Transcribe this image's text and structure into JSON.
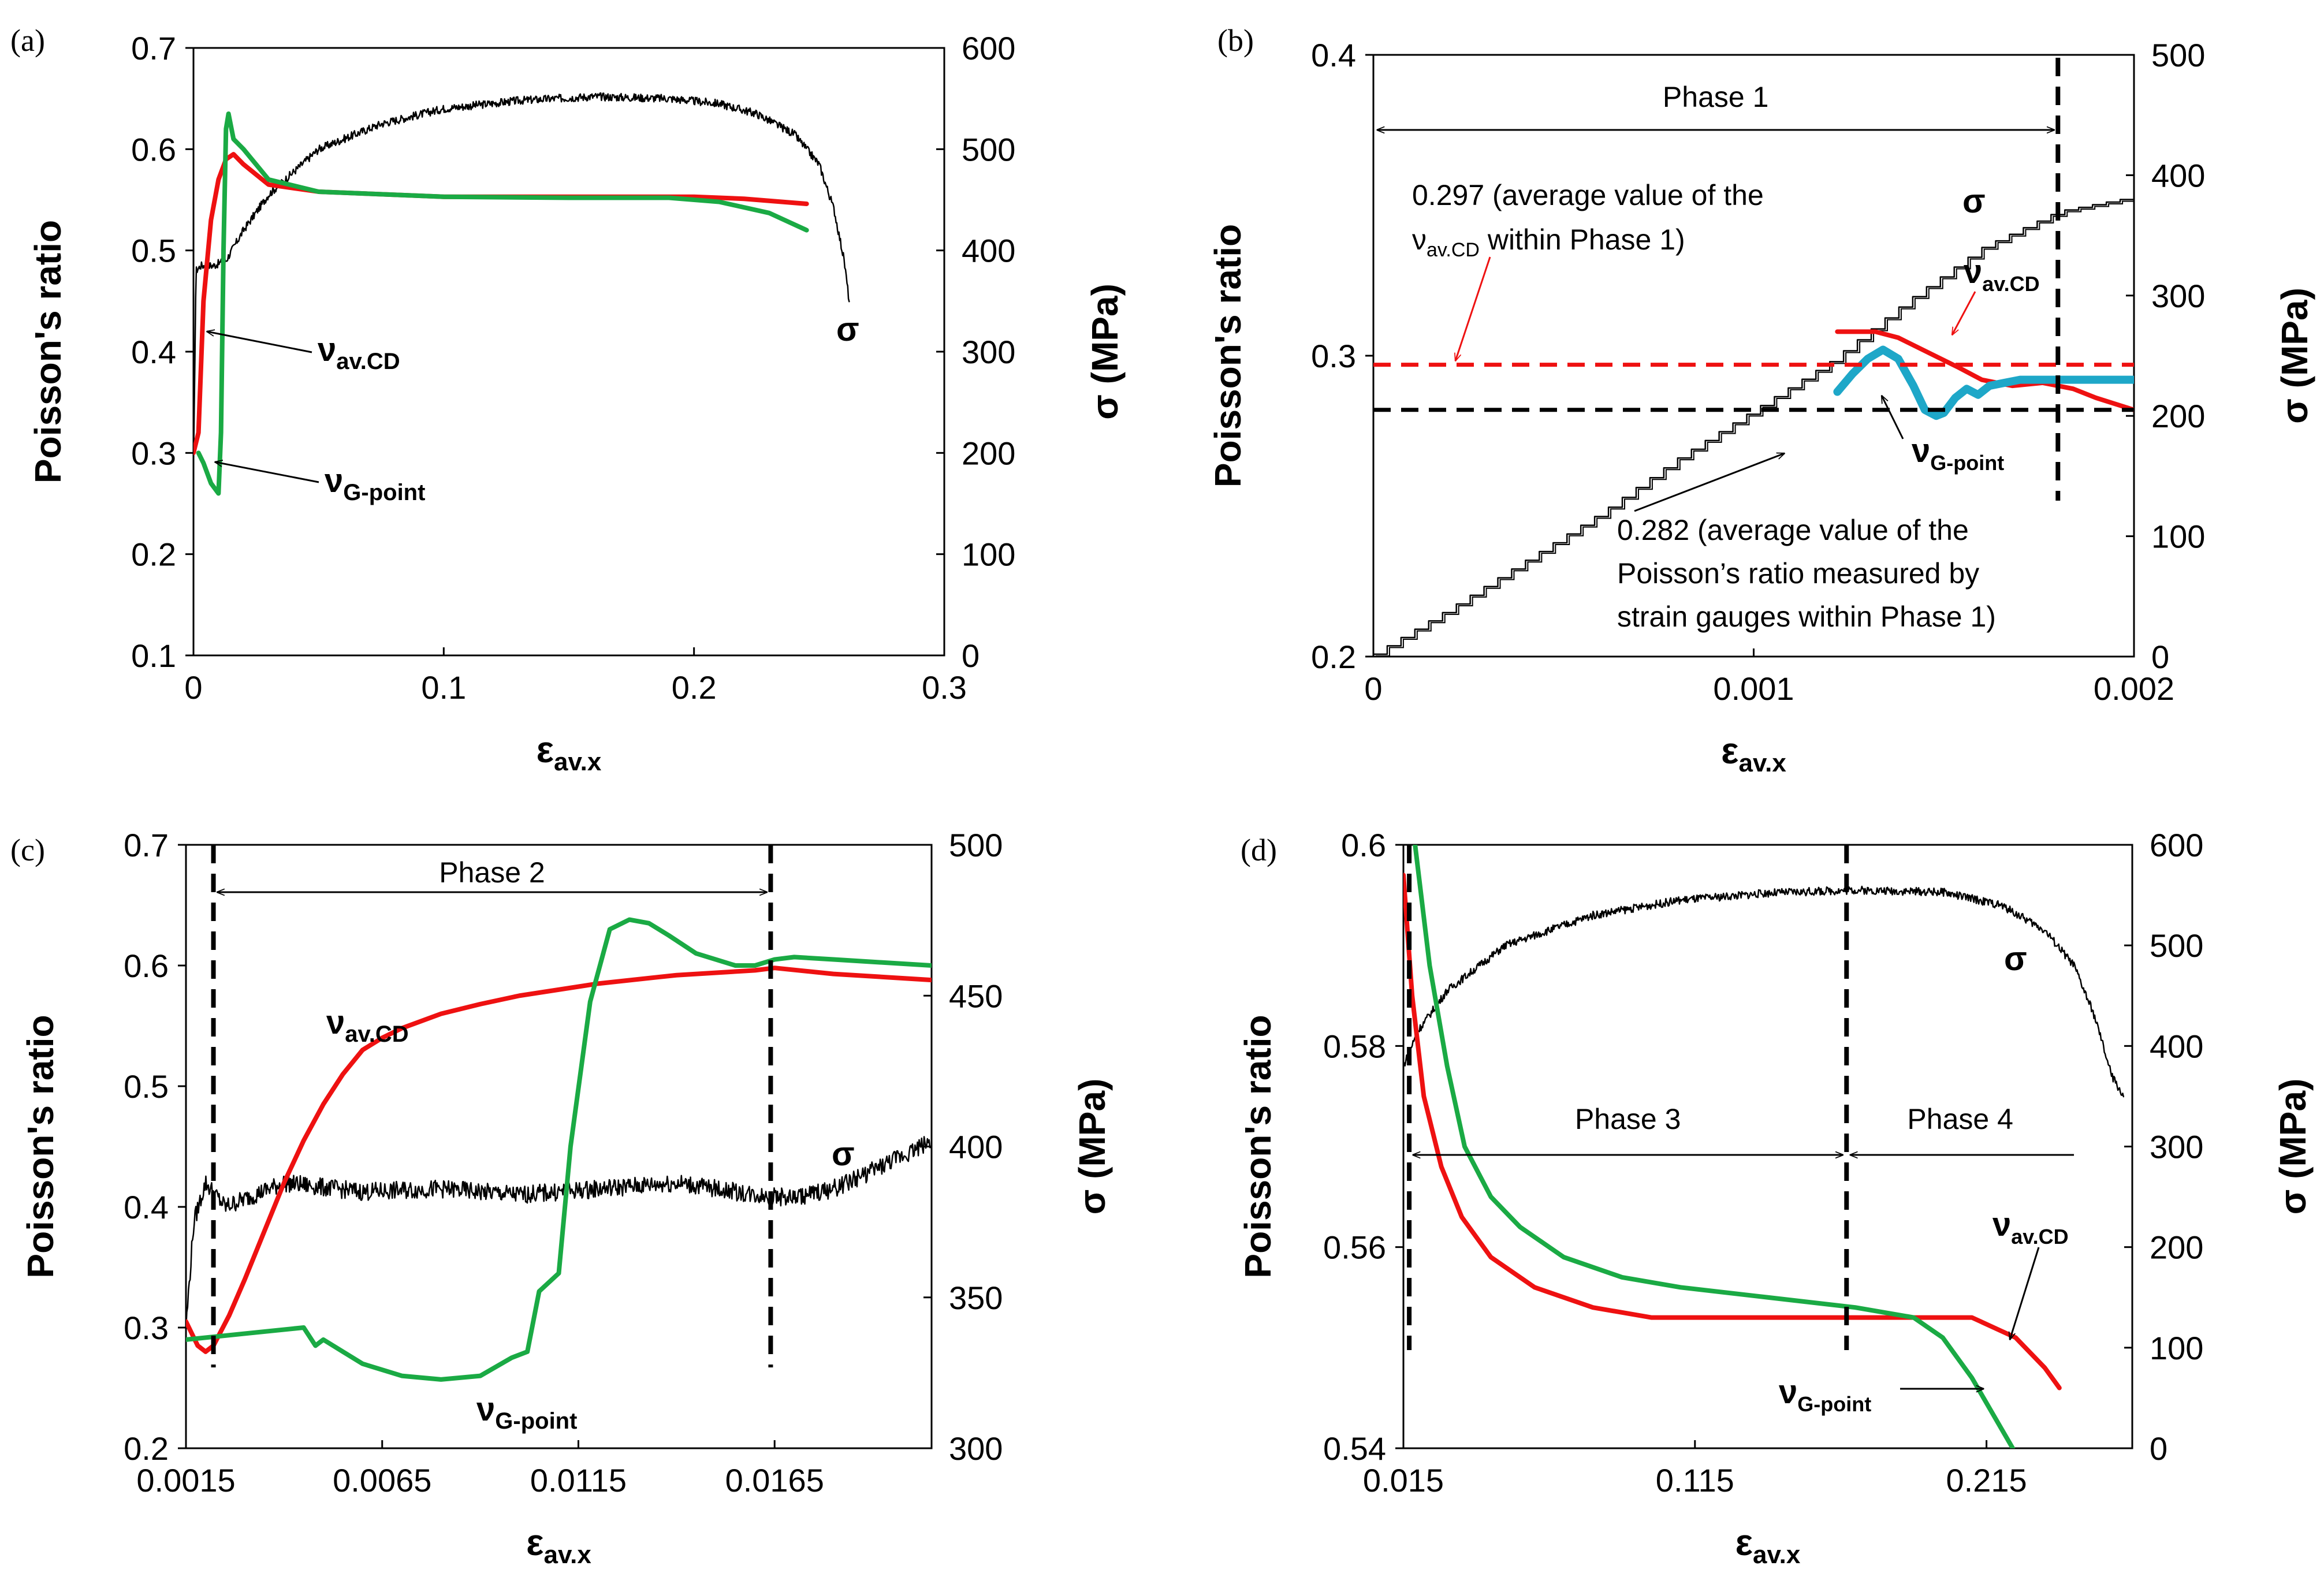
{
  "figure": {
    "colors": {
      "sigma": "#000000",
      "nu_cd": "#ee1111",
      "nu_g": "#1aaa44",
      "nu_gauge": "#1ea7c8"
    }
  },
  "chart_data": [
    {
      "panel": "(a)",
      "type": "line",
      "xlabel": "ε",
      "xlabel_sub": "av.x",
      "ylabel": "Poisson's ratio",
      "y2label": "σ (MPa)",
      "xlim": [
        0,
        0.3
      ],
      "xticks": [
        "0",
        "0.1",
        "0.2",
        "0.3"
      ],
      "xtick_values": [
        0,
        0.1,
        0.2,
        0.3
      ],
      "ylim": [
        0.1,
        0.7
      ],
      "yticks": [
        "0.1",
        "0.2",
        "0.3",
        "0.4",
        "0.5",
        "0.6",
        "0.7"
      ],
      "ytick_values": [
        0.1,
        0.2,
        0.3,
        0.4,
        0.5,
        0.6,
        0.7
      ],
      "y2lim": [
        0,
        600
      ],
      "y2ticks": [
        "0",
        "100",
        "200",
        "300",
        "400",
        "500",
        "600"
      ],
      "y2tick_values": [
        0,
        100,
        200,
        300,
        400,
        500,
        600
      ],
      "series": [
        {
          "name": "σ",
          "axis": "right",
          "color": "#000000",
          "thin": true,
          "noise": 4,
          "x": [
            0,
            0.001,
            0.003,
            0.008,
            0.013,
            0.02,
            0.03,
            0.05,
            0.075,
            0.1,
            0.13,
            0.16,
            0.19,
            0.21,
            0.225,
            0.24,
            0.25,
            0.256,
            0.26,
            0.262
          ],
          "y": [
            180,
            380,
            385,
            385,
            390,
            420,
            455,
            500,
            525,
            540,
            548,
            552,
            550,
            545,
            535,
            515,
            485,
            440,
            390,
            350
          ]
        },
        {
          "name": "νav.CD",
          "axis": "left",
          "color": "#ee1111",
          "x": [
            0,
            0.002,
            0.004,
            0.007,
            0.01,
            0.013,
            0.016,
            0.02,
            0.03,
            0.05,
            0.1,
            0.15,
            0.2,
            0.22,
            0.245
          ],
          "y": [
            0.3,
            0.32,
            0.45,
            0.53,
            0.57,
            0.59,
            0.595,
            0.585,
            0.565,
            0.558,
            0.553,
            0.553,
            0.553,
            0.551,
            0.546
          ]
        },
        {
          "name": "νG-point",
          "axis": "left",
          "color": "#1aaa44",
          "x": [
            0.002,
            0.004,
            0.007,
            0.01,
            0.011,
            0.012,
            0.013,
            0.014,
            0.016,
            0.02,
            0.03,
            0.05,
            0.1,
            0.15,
            0.19,
            0.21,
            0.23,
            0.245
          ],
          "y": [
            0.3,
            0.29,
            0.27,
            0.26,
            0.32,
            0.5,
            0.62,
            0.635,
            0.61,
            0.6,
            0.57,
            0.558,
            0.553,
            0.552,
            0.552,
            0.548,
            0.537,
            0.52
          ]
        }
      ],
      "annotations": [
        {
          "text": "ν",
          "sub": "av.CD"
        },
        {
          "text": "ν",
          "sub": "G-point"
        },
        {
          "text": "σ"
        }
      ]
    },
    {
      "panel": "(b)",
      "type": "line",
      "xlabel": "ε",
      "xlabel_sub": "av.x",
      "ylabel": "Poisson's ratio",
      "y2label": "σ (MPa)",
      "xlim": [
        0,
        0.002
      ],
      "xticks": [
        "0",
        "0.001",
        "0.002"
      ],
      "xtick_values": [
        0,
        0.001,
        0.002
      ],
      "ylim": [
        0.2,
        0.4
      ],
      "yticks": [
        "0.2",
        "0.3",
        "0.4"
      ],
      "ytick_values": [
        0.2,
        0.3,
        0.4
      ],
      "y2lim": [
        0,
        500
      ],
      "y2ticks": [
        "0",
        "100",
        "200",
        "300",
        "400",
        "500"
      ],
      "y2tick_values": [
        0,
        100,
        200,
        300,
        400,
        500
      ],
      "series": [
        {
          "name": "σ",
          "axis": "right",
          "color": "#000000",
          "thin": true,
          "stair": true,
          "x": [
            0,
            0.0002,
            0.0004,
            0.0006,
            0.0008,
            0.001,
            0.0012,
            0.0014,
            0.0016,
            0.0018,
            0.002
          ],
          "y": [
            2,
            40,
            80,
            120,
            165,
            205,
            245,
            295,
            340,
            370,
            382
          ]
        },
        {
          "name": "νav.CD",
          "axis": "left",
          "color": "#ee1111",
          "x": [
            0.00122,
            0.00128,
            0.00132,
            0.00138,
            0.00146,
            0.00154,
            0.0016,
            0.00168,
            0.00176,
            0.00184,
            0.0019,
            0.002
          ],
          "y": [
            0.308,
            0.308,
            0.308,
            0.306,
            0.301,
            0.296,
            0.292,
            0.29,
            0.291,
            0.289,
            0.286,
            0.282
          ]
        },
        {
          "name": "νG-point",
          "axis": "left",
          "color": "#1ea7c8",
          "thick": true,
          "x": [
            0.00122,
            0.00126,
            0.0013,
            0.00134,
            0.00138,
            0.00142,
            0.00145,
            0.00148,
            0.0015,
            0.00153,
            0.00156,
            0.00159,
            0.00162,
            0.00166,
            0.0017,
            0.00178,
            0.0019,
            0.002
          ],
          "y": [
            0.288,
            0.294,
            0.299,
            0.302,
            0.299,
            0.29,
            0.282,
            0.28,
            0.281,
            0.286,
            0.289,
            0.287,
            0.29,
            0.291,
            0.292,
            0.292,
            0.292,
            0.292
          ]
        }
      ],
      "reference_lines": [
        {
          "value": 0.297,
          "color": "#ee1111",
          "label": "0.297 (average value of the",
          "label2_prefix": "ν",
          "label2_sub": "av.CD",
          "label2_suffix": " within Phase 1)"
        },
        {
          "value": 0.282,
          "color": "#000000",
          "lines": [
            "0.282 (average value of the",
            "Poisson’s ratio measured by",
            "strain gauges within Phase 1)"
          ]
        }
      ],
      "phase_marker_x": [
        0.0018
      ],
      "phase_labels": [
        "Phase 1"
      ],
      "annotations": [
        {
          "text": "σ"
        },
        {
          "text": "ν",
          "sub": "av.CD"
        },
        {
          "text": "ν",
          "sub": "G-point"
        }
      ]
    },
    {
      "panel": "(c)",
      "type": "line",
      "xlabel": "ε",
      "xlabel_sub": "av.x",
      "ylabel": "Poisson's ratio",
      "y2label": "σ (MPa)",
      "xlim": [
        0.0015,
        0.0205
      ],
      "xticks": [
        "0.0015",
        "0.0065",
        "0.0115",
        "0.0165"
      ],
      "xtick_values": [
        0.0015,
        0.0065,
        0.0115,
        0.0165
      ],
      "ylim": [
        0.2,
        0.7
      ],
      "yticks": [
        "0.2",
        "0.3",
        "0.4",
        "0.5",
        "0.6",
        "0.7"
      ],
      "ytick_values": [
        0.2,
        0.3,
        0.4,
        0.5,
        0.6,
        0.7
      ],
      "y2lim": [
        300,
        500
      ],
      "y2ticks": [
        "300",
        "350",
        "400",
        "450",
        "500"
      ],
      "y2tick_values": [
        300,
        350,
        400,
        450,
        500
      ],
      "series": [
        {
          "name": "σ",
          "axis": "right",
          "color": "#000000",
          "thin": true,
          "noise": 3,
          "x": [
            0.0015,
            0.0017,
            0.002,
            0.0025,
            0.004,
            0.006,
            0.008,
            0.01,
            0.012,
            0.014,
            0.016,
            0.017,
            0.018,
            0.019,
            0.0205
          ],
          "y": [
            340,
            375,
            388,
            380,
            388,
            385,
            386,
            384,
            386,
            388,
            384,
            383,
            386,
            392,
            402
          ]
        },
        {
          "name": "νav.CD",
          "axis": "left",
          "color": "#ee1111",
          "x": [
            0.0015,
            0.0018,
            0.002,
            0.0022,
            0.0026,
            0.003,
            0.0035,
            0.004,
            0.0045,
            0.005,
            0.0055,
            0.006,
            0.0065,
            0.007,
            0.008,
            0.009,
            0.01,
            0.012,
            0.014,
            0.016,
            0.0165,
            0.018,
            0.0205
          ],
          "y": [
            0.305,
            0.285,
            0.28,
            0.285,
            0.31,
            0.34,
            0.38,
            0.42,
            0.455,
            0.485,
            0.51,
            0.53,
            0.54,
            0.548,
            0.56,
            0.568,
            0.575,
            0.585,
            0.592,
            0.596,
            0.598,
            0.593,
            0.588
          ]
        },
        {
          "name": "νG-point",
          "axis": "left",
          "color": "#1aaa44",
          "x": [
            0.0015,
            0.003,
            0.0045,
            0.0048,
            0.005,
            0.0055,
            0.006,
            0.007,
            0.008,
            0.009,
            0.0098,
            0.0102,
            0.0105,
            0.011,
            0.0113,
            0.0118,
            0.0123,
            0.0128,
            0.0133,
            0.0138,
            0.0145,
            0.0155,
            0.016,
            0.0165,
            0.017,
            0.018,
            0.0205
          ],
          "y": [
            0.29,
            0.295,
            0.3,
            0.285,
            0.29,
            0.28,
            0.27,
            0.26,
            0.257,
            0.26,
            0.275,
            0.28,
            0.33,
            0.345,
            0.45,
            0.57,
            0.63,
            0.638,
            0.635,
            0.625,
            0.61,
            0.6,
            0.6,
            0.605,
            0.607,
            0.605,
            0.6
          ]
        }
      ],
      "phase_marker_x": [
        0.0022,
        0.0164
      ],
      "phase_labels": [
        "Phase 2"
      ],
      "annotations": [
        {
          "text": "ν",
          "sub": "av.CD"
        },
        {
          "text": "ν",
          "sub": "G-point"
        },
        {
          "text": "σ"
        }
      ]
    },
    {
      "panel": "(d)",
      "type": "line",
      "xlabel": "ε",
      "xlabel_sub": "av.x",
      "ylabel": "Poisson's ratio",
      "y2label": "σ (MPa)",
      "xlim": [
        0.015,
        0.265
      ],
      "xticks": [
        "0.015",
        "0.115",
        "0.215"
      ],
      "xtick_values": [
        0.015,
        0.115,
        0.215
      ],
      "ylim": [
        0.54,
        0.6
      ],
      "yticks": [
        "0.54",
        "0.56",
        "0.58",
        "0.6"
      ],
      "ytick_values": [
        0.54,
        0.56,
        0.58,
        0.6
      ],
      "y2lim": [
        0,
        600
      ],
      "y2ticks": [
        "0",
        "100",
        "200",
        "300",
        "400",
        "500",
        "600"
      ],
      "y2tick_values": [
        0,
        100,
        200,
        300,
        400,
        500,
        600
      ],
      "series": [
        {
          "name": "σ",
          "axis": "right",
          "color": "#000000",
          "thin": true,
          "noise": 4,
          "x": [
            0.015,
            0.02,
            0.03,
            0.05,
            0.08,
            0.11,
            0.14,
            0.17,
            0.2,
            0.22,
            0.235,
            0.245,
            0.252,
            0.258,
            0.262
          ],
          "y": [
            380,
            415,
            455,
            500,
            530,
            545,
            552,
            555,
            553,
            540,
            515,
            480,
            430,
            370,
            350
          ]
        },
        {
          "name": "νav.CD",
          "axis": "left",
          "color": "#ee1111",
          "x": [
            0.015,
            0.018,
            0.022,
            0.028,
            0.035,
            0.045,
            0.06,
            0.08,
            0.1,
            0.13,
            0.16,
            0.19,
            0.21,
            0.225,
            0.235,
            0.24
          ],
          "y": [
            0.597,
            0.585,
            0.575,
            0.568,
            0.563,
            0.559,
            0.556,
            0.554,
            0.553,
            0.553,
            0.553,
            0.553,
            0.553,
            0.551,
            0.548,
            0.546
          ]
        },
        {
          "name": "νG-point",
          "axis": "left",
          "color": "#1aaa44",
          "x": [
            0.019,
            0.024,
            0.03,
            0.036,
            0.045,
            0.055,
            0.07,
            0.09,
            0.11,
            0.14,
            0.17,
            0.19,
            0.2,
            0.21,
            0.218,
            0.224
          ],
          "y": [
            0.6,
            0.588,
            0.578,
            0.57,
            0.565,
            0.562,
            0.559,
            0.557,
            0.556,
            0.555,
            0.554,
            0.553,
            0.551,
            0.547,
            0.543,
            0.54
          ]
        }
      ],
      "phase_marker_x": [
        0.017,
        0.167
      ],
      "phase_labels": [
        "Phase 3",
        "Phase 4"
      ],
      "annotations": [
        {
          "text": "σ"
        },
        {
          "text": "ν",
          "sub": "av.CD"
        },
        {
          "text": "ν",
          "sub": "G-point"
        }
      ]
    }
  ]
}
